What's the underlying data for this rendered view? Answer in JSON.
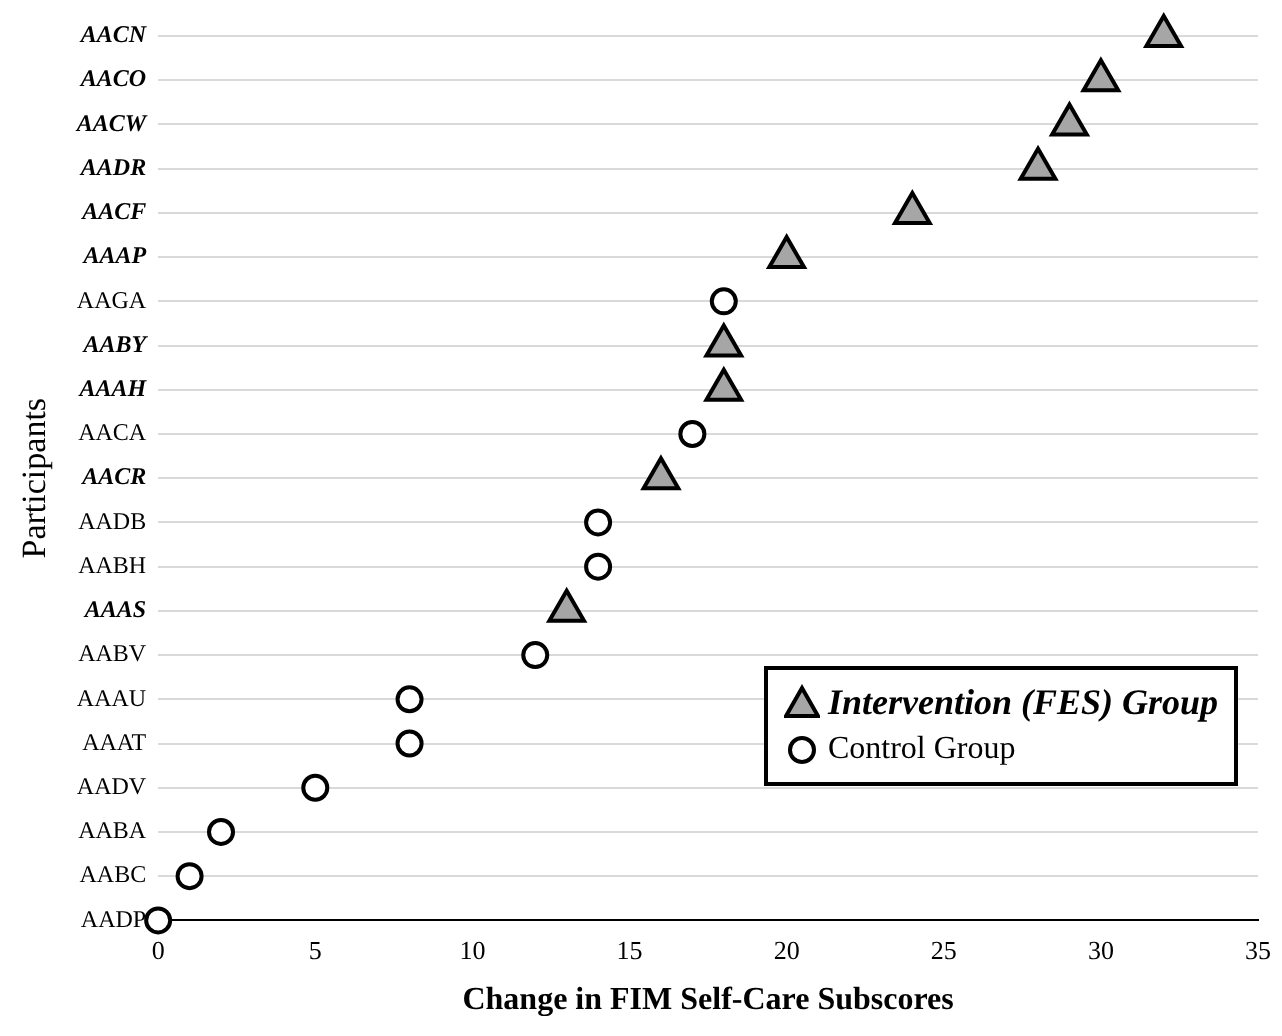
{
  "chart_data": {
    "type": "scatter",
    "orientation": "horizontal",
    "xlabel": "Change in FIM Self-Care Subscores",
    "ylabel": "Participants",
    "categories": [
      "AACN",
      "AACO",
      "AACW",
      "AADR",
      "AACF",
      "AAAP",
      "AAGA",
      "AABY",
      "AAAH",
      "AACA",
      "AACR",
      "AADB",
      "AABH",
      "AAAS",
      "AABV",
      "AAAU",
      "AAAT",
      "AADV",
      "AABA",
      "AABC",
      "AADP"
    ],
    "series": [
      {
        "name": "Intervention (FES) Group",
        "color": "#a6a6a6",
        "marker": "triangle",
        "values": [
          32,
          30,
          29,
          28,
          24,
          20,
          null,
          18,
          18,
          null,
          16,
          null,
          null,
          13,
          null,
          null,
          null,
          null,
          null,
          null,
          null
        ]
      },
      {
        "name": "Control Group",
        "color": "#ffffff",
        "marker": "circle",
        "values": [
          null,
          null,
          null,
          null,
          null,
          null,
          18,
          null,
          null,
          17,
          null,
          14,
          14,
          null,
          12,
          8,
          8,
          5,
          2,
          1,
          0
        ]
      }
    ],
    "xlim": [
      0,
      35
    ],
    "xticks": [
      0,
      5,
      10,
      15,
      20,
      25,
      30,
      35
    ],
    "grid": "y",
    "legend": "bottom right"
  }
}
